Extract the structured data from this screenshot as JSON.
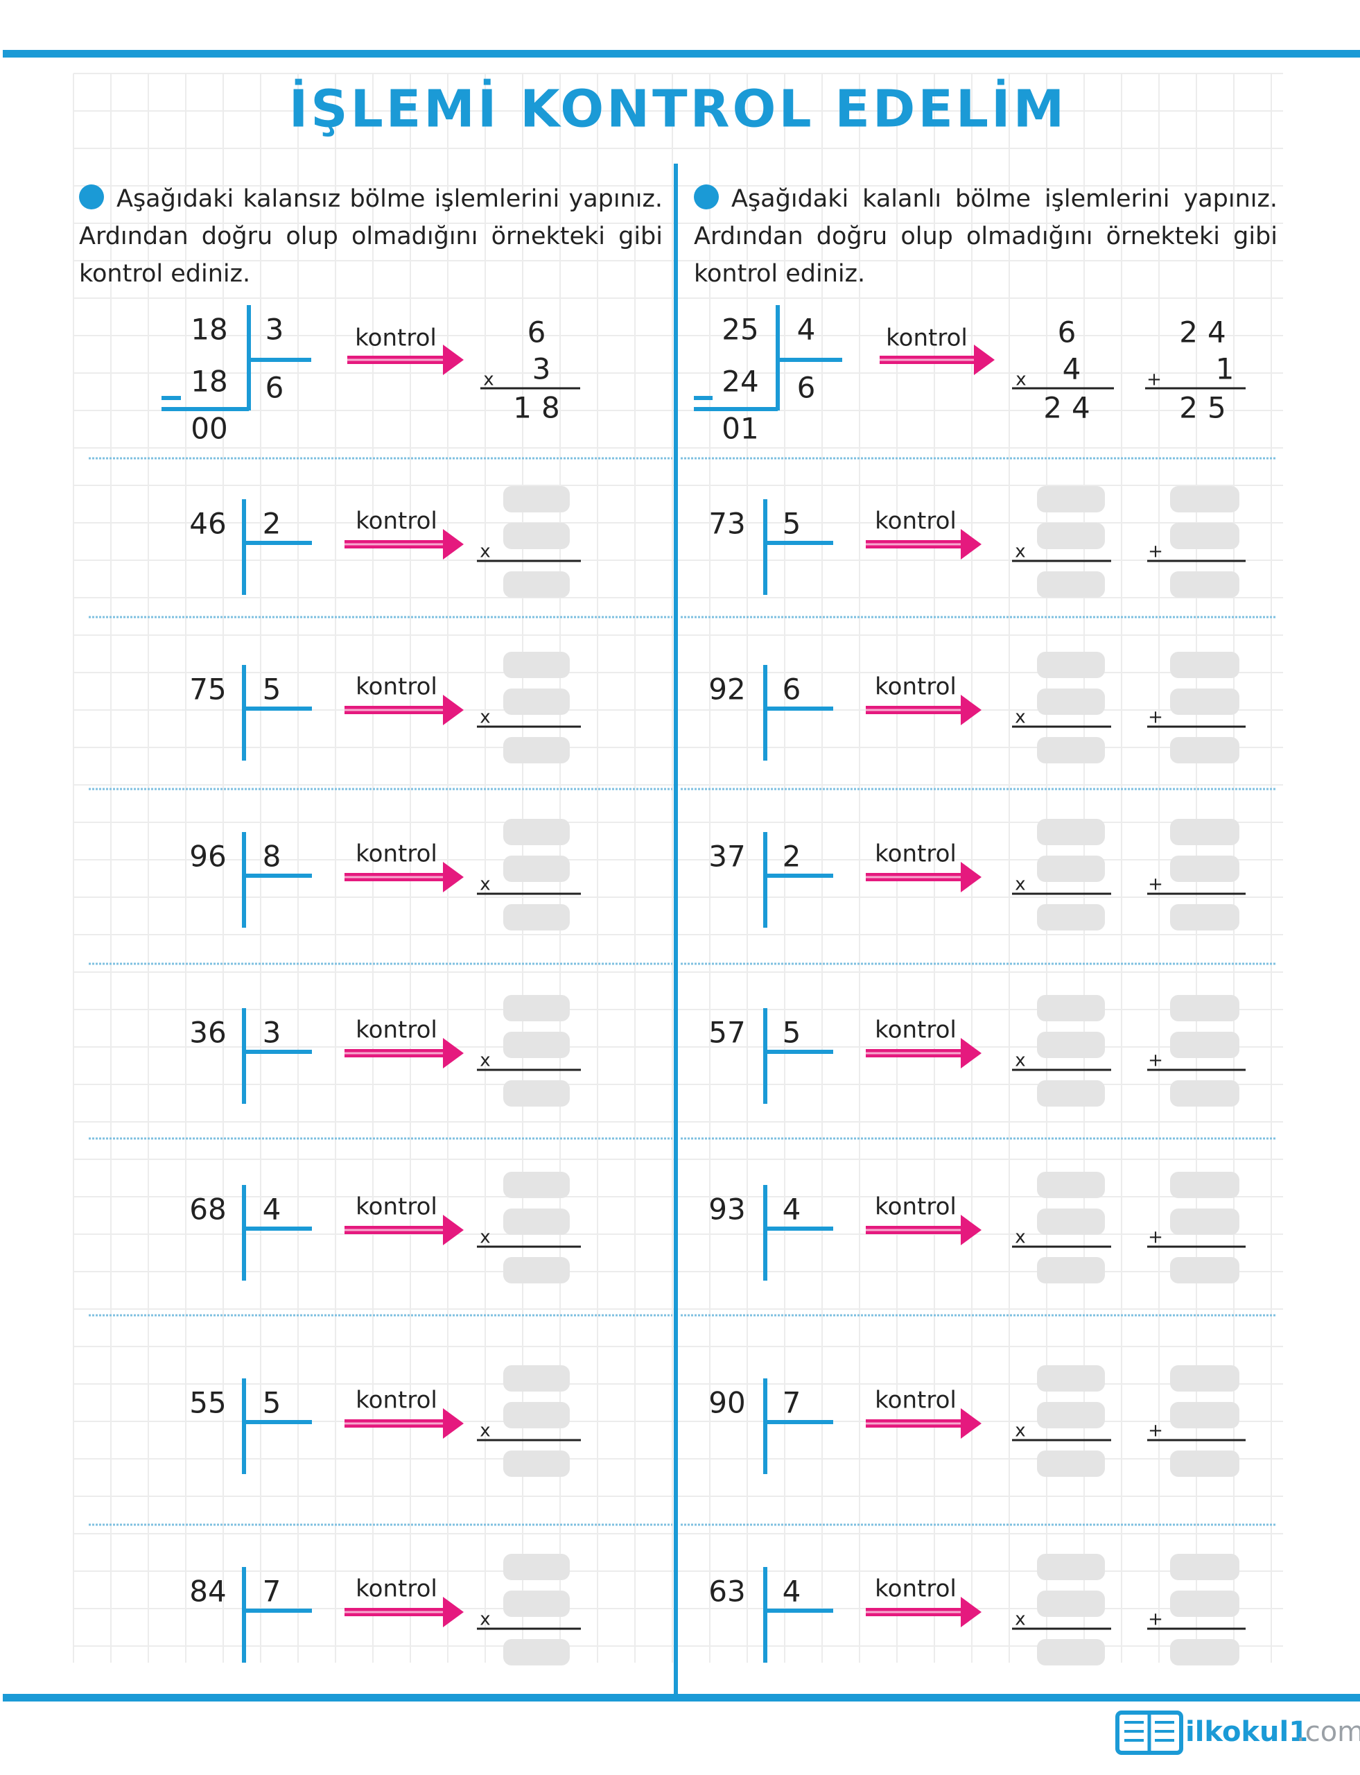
{
  "header": {
    "title": "İŞLEMİ KONTROL EDELİM"
  },
  "labels": {
    "kontrol": "kontrol",
    "times": "x",
    "plus": "+"
  },
  "columns": [
    {
      "instruction": "Aşağıdaki kalansız bölme işlemlerini yapınız. Ardından doğru olup olmadığını örnekteki gibi kontrol ediniz.",
      "example": {
        "dividend": "18",
        "divisor": "3",
        "subtrahend": "18",
        "quotient": "6",
        "remainder": "00",
        "multiplicand": "6",
        "multiplier": "3",
        "product": "18"
      },
      "problems": [
        {
          "dividend": "46",
          "divisor": "2"
        },
        {
          "dividend": "75",
          "divisor": "5"
        },
        {
          "dividend": "96",
          "divisor": "8"
        },
        {
          "dividend": "36",
          "divisor": "3"
        },
        {
          "dividend": "68",
          "divisor": "4"
        },
        {
          "dividend": "55",
          "divisor": "5"
        },
        {
          "dividend": "84",
          "divisor": "7"
        }
      ]
    },
    {
      "instruction": "Aşağıdaki kalanlı bölme işlemlerini yapınız. Ardından doğru olup olmadığını örnekteki gibi kontrol ediniz.",
      "example": {
        "dividend": "25",
        "divisor": "4",
        "subtrahend": "24",
        "quotient": "6",
        "remainder": "01",
        "multiplicand": "6",
        "multiplier": "4",
        "product": "24",
        "addend": "1",
        "sum": "25"
      },
      "problems": [
        {
          "dividend": "73",
          "divisor": "5"
        },
        {
          "dividend": "92",
          "divisor": "6"
        },
        {
          "dividend": "37",
          "divisor": "2"
        },
        {
          "dividend": "57",
          "divisor": "5"
        },
        {
          "dividend": "93",
          "divisor": "4"
        },
        {
          "dividend": "90",
          "divisor": "7"
        },
        {
          "dividend": "63",
          "divisor": "4"
        }
      ]
    }
  ],
  "footer": {
    "brand": "ilkokul1",
    "domain": ".com"
  }
}
